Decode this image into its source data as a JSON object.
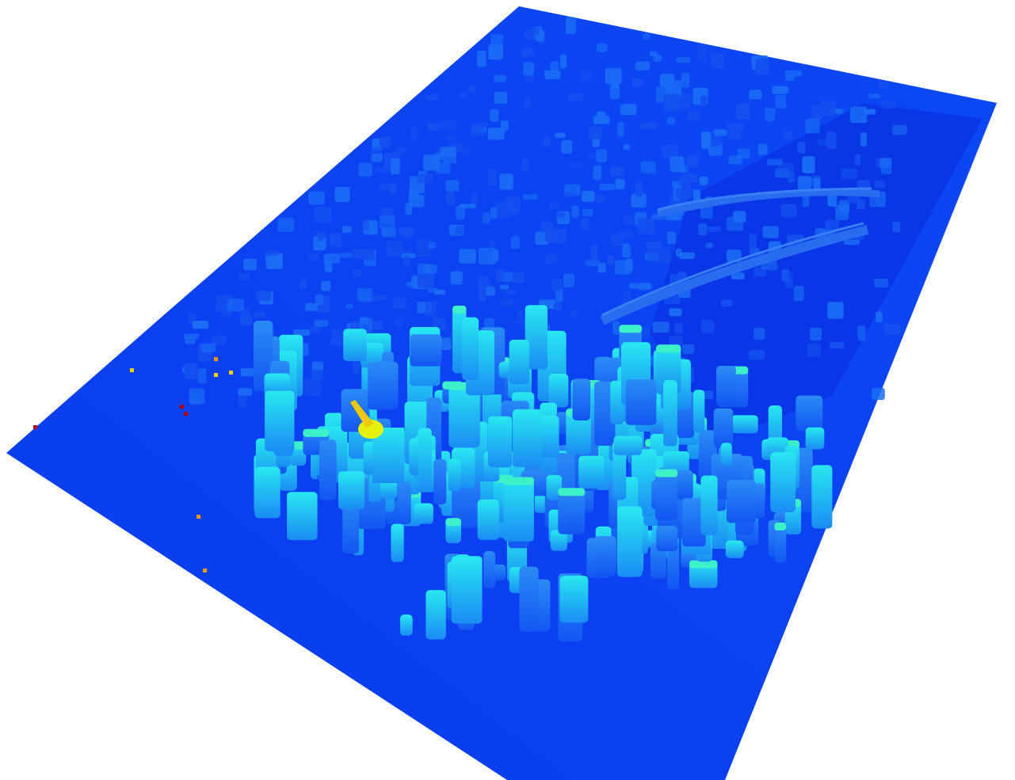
{
  "view": {
    "kind": "3d-lidar-point-cloud",
    "colormap": "jet",
    "colormap_encodes": "elevation",
    "background": "#ffffff"
  },
  "colors": {
    "ground": "#0a3cf0",
    "ground_dark": "#0832d8",
    "low_buildings": "#1a6cf5",
    "mid_buildings": "#1ec8f0",
    "high_buildings": "#3cf0c8",
    "peak_tower": "#e6f00a",
    "tower_tip": "#f0a00a",
    "outlier_hot": "#b40000",
    "outlier_warm": "#f09a00",
    "outlier_yellow": "#f0d200",
    "bridge": "#2a6cf0",
    "water_shadow": "#0626c8"
  },
  "scene": {
    "bridges_count": 2,
    "tallest_feature": "peak-tower"
  }
}
